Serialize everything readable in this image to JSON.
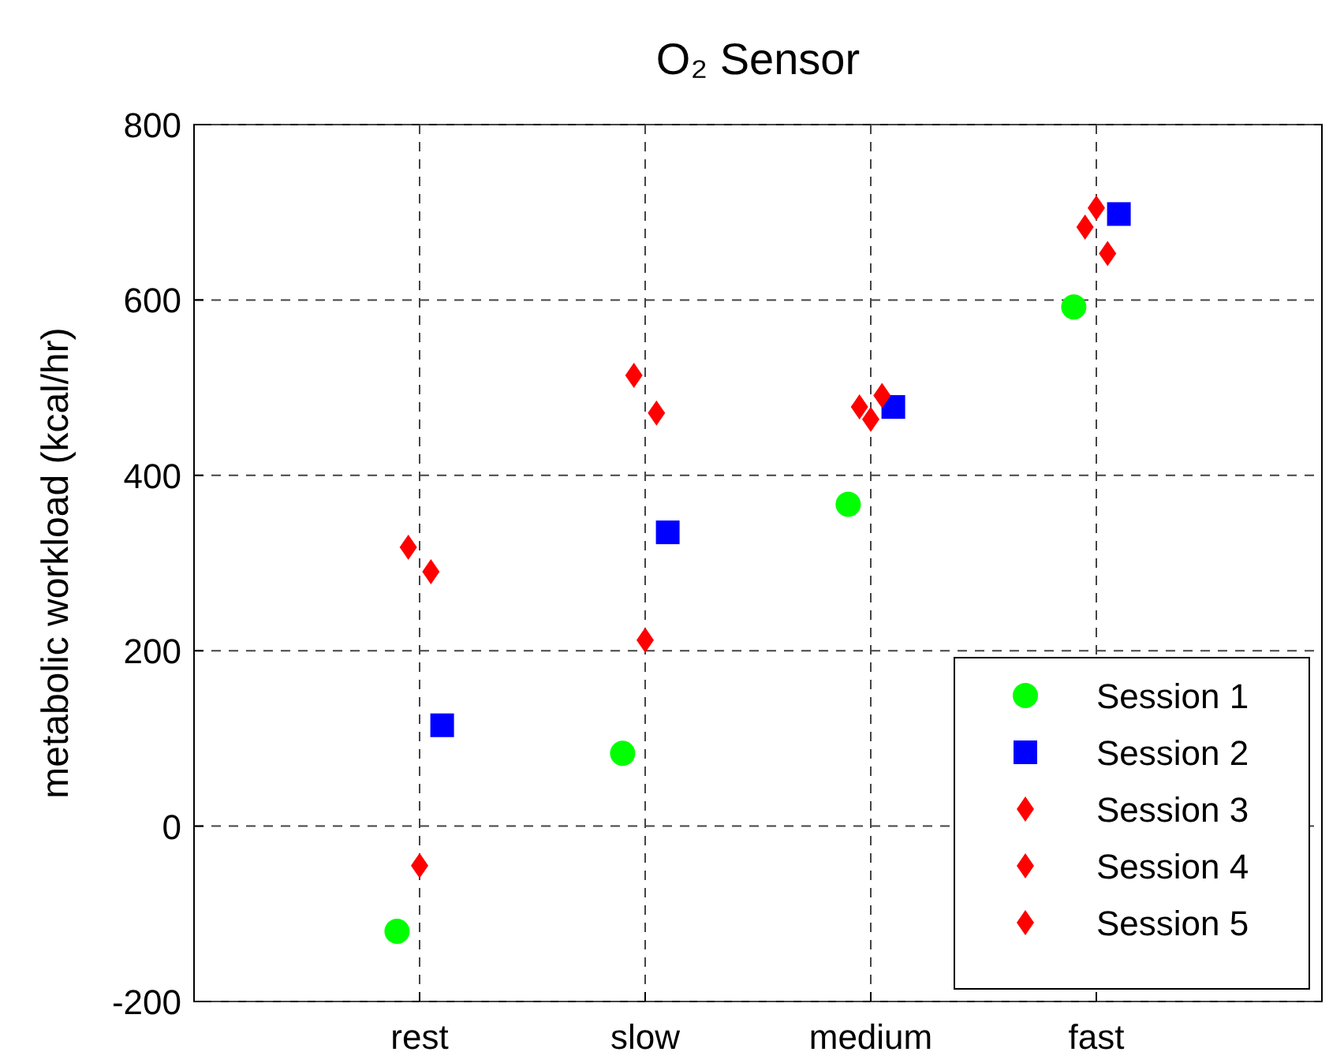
{
  "chart_data": {
    "type": "scatter",
    "title": "O₂ Sensor",
    "ylabel": "metabolic workload (kcal/hr)",
    "categories": [
      "rest",
      "slow",
      "medium",
      "fast"
    ],
    "ylim": [
      -200,
      800
    ],
    "yticks": [
      -200,
      0,
      200,
      400,
      600,
      800
    ],
    "grid": true,
    "legend": "bottom right",
    "series": [
      {
        "name": "Session 1",
        "color": "#00ff00",
        "marker": "circle",
        "values": [
          -120,
          83,
          367,
          592
        ]
      },
      {
        "name": "Session 2",
        "color": "#0000ff",
        "marker": "square",
        "values": [
          115,
          335,
          478,
          698
        ]
      },
      {
        "name": "Session 3",
        "color": "#ff0000",
        "marker": "diamond",
        "values": [
          318,
          514,
          478,
          683
        ]
      },
      {
        "name": "Session 4",
        "color": "#ff0000",
        "marker": "diamond",
        "values": [
          -45,
          212,
          464,
          705
        ]
      },
      {
        "name": "Session 5",
        "color": "#ff0000",
        "marker": "diamond",
        "values": [
          290,
          471,
          491,
          653
        ]
      }
    ]
  }
}
